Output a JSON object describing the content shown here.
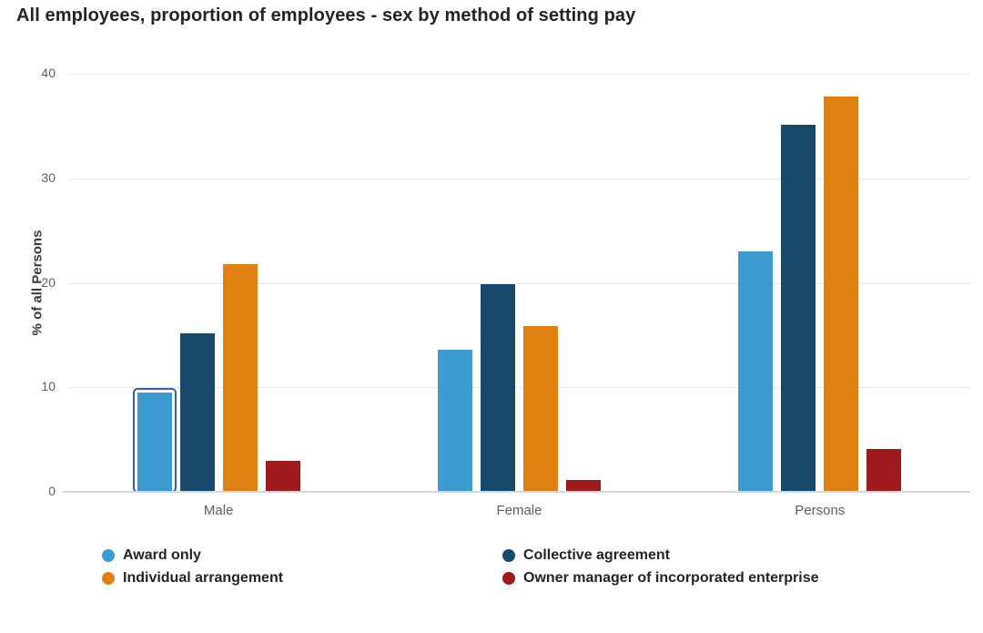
{
  "chart_data": {
    "type": "bar",
    "title": "All employees, proportion of employees - sex by method of setting pay",
    "xlabel": "",
    "ylabel": "% of all Persons",
    "ylim": [
      0,
      40
    ],
    "yticks": [
      0,
      10,
      20,
      30,
      40
    ],
    "grid": true,
    "legend_position": "bottom",
    "categories": [
      "Male",
      "Female",
      "Persons"
    ],
    "series": [
      {
        "name": "Award only",
        "color": "#3d9bd1",
        "values": [
          9.5,
          13.6,
          23.0
        ]
      },
      {
        "name": "Collective agreement",
        "color": "#17496b",
        "values": [
          15.2,
          19.9,
          35.1
        ]
      },
      {
        "name": "Individual arrangement",
        "color": "#df8012",
        "values": [
          21.8,
          15.9,
          37.8
        ]
      },
      {
        "name": "Owner manager of incorporated enterprise",
        "color": "#9e1a1d",
        "values": [
          3.0,
          1.1,
          4.1
        ]
      }
    ],
    "selected_point": {
      "series": "Award only",
      "category": "Male"
    }
  },
  "colors": {
    "selection_outline": "#3060a8",
    "gridline": "#e6e6e6",
    "axis_line": "#cfd9e6",
    "tick_label": "#605e5c",
    "title_text": "#252423",
    "legend_text": "#252423",
    "background": "#ffffff"
  }
}
